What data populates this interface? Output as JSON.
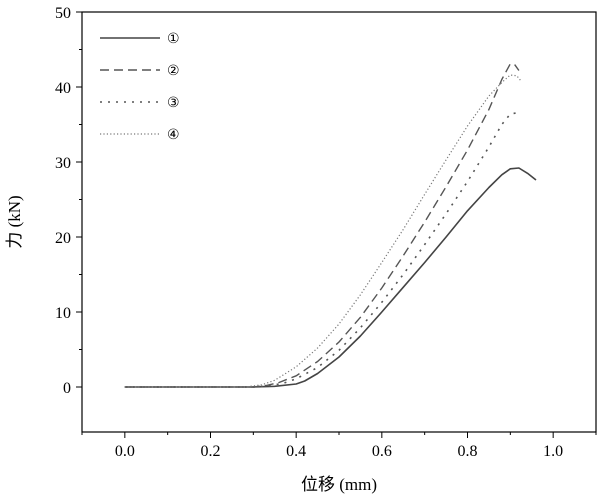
{
  "chart_data": {
    "type": "line",
    "title": "",
    "xlabel": "位移 (mm)",
    "ylabel": "力 (kN)",
    "xlim": [
      -0.1,
      1.1
    ],
    "ylim": [
      -6,
      50
    ],
    "xticks": [
      0.0,
      0.2,
      0.4,
      0.6,
      0.8,
      1.0
    ],
    "xtick_labels": [
      "0.0",
      "0.2",
      "0.4",
      "0.6",
      "0.8",
      "1.0"
    ],
    "yticks": [
      0,
      10,
      20,
      30,
      40,
      50
    ],
    "ytick_labels": [
      "0",
      "10",
      "20",
      "30",
      "40",
      "50"
    ],
    "grid": false,
    "legend_position": "top-left",
    "series": [
      {
        "name": "①",
        "style": "solid",
        "color": "#444444",
        "points": [
          [
            0,
            0
          ],
          [
            0.3,
            0
          ],
          [
            0.35,
            0.1
          ],
          [
            0.4,
            0.4
          ],
          [
            0.42,
            0.8
          ],
          [
            0.45,
            1.8
          ],
          [
            0.5,
            4.0
          ],
          [
            0.55,
            6.8
          ],
          [
            0.6,
            10.0
          ],
          [
            0.65,
            13.3
          ],
          [
            0.7,
            16.6
          ],
          [
            0.75,
            20.0
          ],
          [
            0.8,
            23.5
          ],
          [
            0.85,
            26.6
          ],
          [
            0.88,
            28.3
          ],
          [
            0.9,
            29.1
          ],
          [
            0.92,
            29.2
          ],
          [
            0.94,
            28.5
          ],
          [
            0.96,
            27.6
          ]
        ]
      },
      {
        "name": "②",
        "style": "dashed",
        "color": "#555555",
        "points": [
          [
            0,
            0
          ],
          [
            0.3,
            0
          ],
          [
            0.33,
            0.2
          ],
          [
            0.36,
            0.6
          ],
          [
            0.4,
            1.5
          ],
          [
            0.45,
            3.4
          ],
          [
            0.5,
            6.0
          ],
          [
            0.55,
            9.3
          ],
          [
            0.6,
            13.2
          ],
          [
            0.65,
            17.5
          ],
          [
            0.7,
            22.0
          ],
          [
            0.75,
            26.7
          ],
          [
            0.8,
            31.6
          ],
          [
            0.85,
            37.0
          ],
          [
            0.88,
            41.0
          ],
          [
            0.9,
            43.1
          ],
          [
            0.91,
            43.0
          ],
          [
            0.92,
            42.2
          ]
        ]
      },
      {
        "name": "③",
        "style": "dotted",
        "color": "#555555",
        "points": [
          [
            0,
            0
          ],
          [
            0.3,
            0
          ],
          [
            0.33,
            0.1
          ],
          [
            0.37,
            0.5
          ],
          [
            0.4,
            1.1
          ],
          [
            0.45,
            2.6
          ],
          [
            0.5,
            4.9
          ],
          [
            0.55,
            7.9
          ],
          [
            0.6,
            11.3
          ],
          [
            0.65,
            15.0
          ],
          [
            0.7,
            19.0
          ],
          [
            0.75,
            23.1
          ],
          [
            0.8,
            27.4
          ],
          [
            0.85,
            32.0
          ],
          [
            0.88,
            35.0
          ],
          [
            0.9,
            36.4
          ],
          [
            0.92,
            36.6
          ]
        ]
      },
      {
        "name": "④",
        "style": "fine-dotted",
        "color": "#777777",
        "points": [
          [
            0,
            0
          ],
          [
            0.28,
            0
          ],
          [
            0.32,
            0.3
          ],
          [
            0.35,
            0.9
          ],
          [
            0.4,
            2.7
          ],
          [
            0.45,
            5.2
          ],
          [
            0.5,
            8.4
          ],
          [
            0.55,
            12.3
          ],
          [
            0.6,
            16.6
          ],
          [
            0.65,
            21.0
          ],
          [
            0.7,
            25.7
          ],
          [
            0.75,
            30.3
          ],
          [
            0.8,
            34.8
          ],
          [
            0.85,
            38.8
          ],
          [
            0.88,
            40.6
          ],
          [
            0.9,
            41.6
          ],
          [
            0.915,
            41.5
          ],
          [
            0.925,
            40.8
          ]
        ]
      }
    ]
  }
}
